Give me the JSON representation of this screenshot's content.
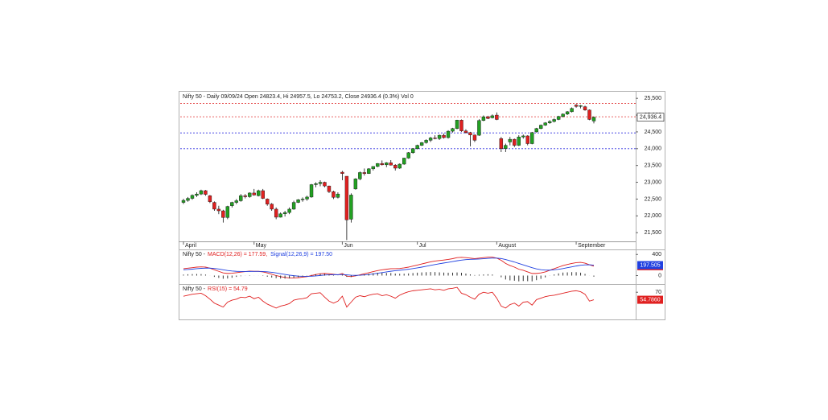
{
  "chart_data": [
    {
      "type": "candlestick",
      "title": "Nifty 50 - Daily 09/09/24 Open 24823.4, Hi 24957.5, Lo 24753.2, Close 24936.4 (0.3%) Vol 0",
      "categories": [
        "April",
        null,
        null,
        null,
        null,
        null,
        null,
        null,
        null,
        null,
        null,
        null,
        null,
        null,
        null,
        null,
        "May",
        null,
        null,
        null,
        null,
        null,
        null,
        null,
        null,
        null,
        null,
        null,
        null,
        null,
        null,
        null,
        null,
        null,
        null,
        null,
        "Jun",
        null,
        null,
        null,
        null,
        null,
        null,
        null,
        null,
        null,
        null,
        null,
        null,
        null,
        null,
        null,
        null,
        "Jul",
        null,
        null,
        null,
        null,
        null,
        null,
        null,
        null,
        null,
        null,
        null,
        null,
        null,
        null,
        null,
        null,
        null,
        "August",
        null,
        null,
        null,
        null,
        null,
        null,
        null,
        null,
        null,
        null,
        null,
        null,
        null,
        null,
        null,
        null,
        null,
        "September",
        null,
        null,
        null,
        null
      ],
      "open": [
        22400,
        22460,
        22520,
        22610,
        22650,
        22750,
        22600,
        22400,
        22200,
        22150,
        21950,
        22300,
        22400,
        22450,
        22600,
        22570,
        22680,
        22600,
        22750,
        22500,
        22350,
        22200,
        21960,
        22060,
        22100,
        22200,
        22400,
        22480,
        22500,
        22560,
        22930,
        22960,
        23000,
        22890,
        22720,
        22550,
        23300,
        23180,
        21900,
        22800,
        23100,
        23290,
        23260,
        23400,
        23470,
        23560,
        23520,
        23580,
        23510,
        23420,
        23540,
        23720,
        23880,
        24000,
        24100,
        24180,
        24250,
        24320,
        24300,
        24400,
        24330,
        24520,
        24600,
        24850,
        24530,
        24480,
        24410,
        24400,
        24840,
        24950,
        24920,
        25000,
        24300,
        24000,
        24200,
        24280,
        24100,
        24350,
        24380,
        24150,
        24500,
        24600,
        24700,
        24770,
        24810,
        24870,
        24960,
        25030,
        25100,
        25300,
        25260,
        25250,
        25150,
        24823.4
      ],
      "high": [
        22510,
        22560,
        22640,
        22700,
        22780,
        22770,
        22620,
        22430,
        22300,
        22180,
        22300,
        22420,
        22500,
        22650,
        22650,
        22700,
        22800,
        22780,
        22800,
        22520,
        22380,
        22250,
        22100,
        22150,
        22250,
        22450,
        22500,
        22550,
        22600,
        22950,
        23000,
        23060,
        23020,
        22900,
        22750,
        22700,
        23340,
        23180,
        22670,
        23120,
        23320,
        23410,
        23420,
        23480,
        23570,
        23650,
        23600,
        23660,
        23540,
        23560,
        23730,
        23900,
        24020,
        24120,
        24200,
        24280,
        24350,
        24400,
        24420,
        24450,
        24550,
        24620,
        24860,
        24870,
        24580,
        24500,
        24420,
        24880,
        24990,
        24980,
        25020,
        25080,
        24350,
        24150,
        24350,
        24300,
        24400,
        24420,
        24400,
        24500,
        24620,
        24720,
        24790,
        24850,
        24900,
        24980,
        25050,
        25120,
        25230,
        25330,
        25300,
        25280,
        25170,
        24957.5
      ],
      "low": [
        22350,
        22420,
        22480,
        22560,
        22620,
        22600,
        22380,
        22150,
        22050,
        21800,
        21900,
        22250,
        22350,
        22420,
        22520,
        22540,
        22600,
        22580,
        22500,
        22300,
        22150,
        21900,
        21950,
        21980,
        22050,
        22180,
        22380,
        22420,
        22450,
        22540,
        22850,
        22880,
        22850,
        22680,
        22500,
        22520,
        23060,
        21280,
        21800,
        22780,
        23060,
        23200,
        23250,
        23350,
        23450,
        23500,
        23450,
        23500,
        23350,
        23400,
        23520,
        23700,
        23850,
        23980,
        24080,
        24150,
        24200,
        24280,
        24260,
        24300,
        24300,
        24480,
        24580,
        24500,
        24450,
        24070,
        24200,
        24380,
        24820,
        24880,
        24900,
        24850,
        23900,
        23900,
        24100,
        24050,
        24080,
        24300,
        24100,
        24130,
        24480,
        24580,
        24680,
        24740,
        24780,
        24850,
        24930,
        25000,
        25080,
        25220,
        25200,
        25130,
        24850,
        24753.2
      ],
      "close": [
        22460,
        22520,
        22610,
        22650,
        22750,
        22640,
        22420,
        22200,
        22150,
        21950,
        22280,
        22400,
        22450,
        22600,
        22570,
        22680,
        22620,
        22750,
        22520,
        22350,
        22200,
        21960,
        22060,
        22100,
        22200,
        22400,
        22480,
        22500,
        22560,
        22930,
        22960,
        23000,
        22890,
        22720,
        22550,
        22650,
        23260,
        21880,
        22620,
        23100,
        23290,
        23260,
        23400,
        23470,
        23560,
        23520,
        23580,
        23510,
        23420,
        23540,
        23720,
        23880,
        24000,
        24100,
        24180,
        24250,
        24320,
        24300,
        24400,
        24330,
        24520,
        24600,
        24850,
        24530,
        24480,
        24410,
        24250,
        24840,
        24950,
        24900,
        24980,
        24870,
        24000,
        24100,
        24280,
        24100,
        24350,
        24380,
        24150,
        24480,
        24600,
        24700,
        24770,
        24810,
        24870,
        24960,
        25030,
        25100,
        25200,
        25260,
        25280,
        25150,
        24870,
        24936.4
      ],
      "up_color": "#22a022",
      "down_color": "#e02020",
      "ylim": [
        21240,
        25720
      ],
      "yticks": [
        {
          "value": 21500,
          "label": "21,500"
        },
        {
          "value": 22000,
          "label": "22,000"
        },
        {
          "value": 22500,
          "label": "22,500"
        },
        {
          "value": 23000,
          "label": "23,000"
        },
        {
          "value": 23500,
          "label": "23,500"
        },
        {
          "value": 24000,
          "label": "24,000"
        },
        {
          "value": 24500,
          "label": "24,500"
        },
        {
          "value": 25000,
          "label": "25,000"
        },
        {
          "value": 25500,
          "label": "25,500"
        }
      ],
      "hlines": [
        {
          "value": 25350,
          "color": "#e03030"
        },
        {
          "value": 24950,
          "color": "#e03030"
        },
        {
          "value": 24470,
          "color": "#3030e0"
        },
        {
          "value": 24000,
          "color": "#3030e0"
        }
      ],
      "price_marker": {
        "value": 24936.4,
        "label": "24,936.4"
      }
    },
    {
      "type": "line",
      "title": "Nifty 50 -",
      "series": [
        {
          "name": "MACD(12,26) = 177.59,",
          "color": "#e02020",
          "marker": 177.593,
          "values": [
            130,
            140,
            150,
            160,
            165,
            160,
            140,
            110,
            80,
            50,
            40,
            45,
            55,
            65,
            75,
            85,
            80,
            80,
            70,
            50,
            25,
            0,
            -20,
            -35,
            -45,
            -45,
            -40,
            -30,
            -20,
            0,
            20,
            35,
            40,
            35,
            25,
            15,
            40,
            -10,
            -20,
            -5,
            15,
            35,
            55,
            75,
            95,
            110,
            120,
            130,
            130,
            135,
            145,
            160,
            180,
            200,
            220,
            240,
            260,
            275,
            285,
            295,
            305,
            320,
            340,
            345,
            340,
            330,
            320,
            330,
            340,
            350,
            350,
            330,
            290,
            230,
            190,
            160,
            120,
            100,
            70,
            40,
            40,
            50,
            70,
            100,
            130,
            160,
            190,
            210,
            230,
            245,
            250,
            235,
            205,
            177.59
          ]
        },
        {
          "name": "Signal(12,26,9) = 197.50",
          "color": "#2040e0",
          "marker": 197.505,
          "values": [
            110,
            115,
            122,
            130,
            137,
            141,
            141,
            135,
            124,
            110,
            96,
            86,
            80,
            77,
            77,
            78,
            79,
            79,
            77,
            72,
            62,
            50,
            36,
            22,
            9,
            -2,
            -10,
            -14,
            -15,
            -12,
            -6,
            2,
            10,
            15,
            17,
            17,
            20,
            14,
            7,
            4,
            6,
            12,
            20,
            31,
            44,
            57,
            70,
            82,
            92,
            101,
            110,
            120,
            132,
            145,
            160,
            176,
            193,
            209,
            224,
            238,
            251,
            265,
            280,
            292,
            302,
            307,
            310,
            314,
            319,
            325,
            330,
            330,
            322,
            304,
            281,
            257,
            229,
            203,
            176,
            149,
            127,
            112,
            104,
            103,
            109,
            119,
            133,
            149,
            165,
            181,
            195,
            203,
            204,
            197.5
          ]
        },
        {
          "type": "bar",
          "color": "#333333",
          "values": [
            20,
            25,
            28,
            30,
            28,
            19,
            -1,
            -25,
            -44,
            -60,
            -56,
            -41,
            -25,
            -12,
            -2,
            7,
            1,
            1,
            -7,
            -22,
            -37,
            -50,
            -56,
            -57,
            -54,
            -43,
            -30,
            -16,
            -5,
            12,
            26,
            33,
            30,
            20,
            8,
            -2,
            20,
            -24,
            -27,
            -9,
            9,
            23,
            35,
            44,
            51,
            53,
            50,
            48,
            38,
            34,
            35,
            40,
            48,
            55,
            60,
            64,
            67,
            66,
            61,
            57,
            54,
            55,
            60,
            53,
            38,
            23,
            10,
            16,
            21,
            25,
            20,
            0,
            -32,
            -74,
            -91,
            -97,
            -109,
            -103,
            -106,
            -109,
            -87,
            -62,
            -34,
            -3,
            21,
            41,
            57,
            61,
            65,
            64,
            55,
            32,
            1,
            -20
          ]
        }
      ],
      "ylim": [
        -160,
        480
      ],
      "yticks": [
        0,
        400
      ]
    },
    {
      "type": "line",
      "title": "Nifty 50 -",
      "series": [
        {
          "name": "RSI(15) = 54.79",
          "color": "#e02020",
          "marker": {
            "value": 54.786,
            "label": "54.7860"
          },
          "values": [
            62,
            64,
            66,
            67,
            68,
            63,
            56,
            48,
            44,
            40,
            50,
            54,
            56,
            60,
            59,
            62,
            57,
            60,
            52,
            46,
            42,
            38,
            42,
            44,
            47,
            54,
            56,
            57,
            59,
            67,
            68,
            69,
            60,
            52,
            48,
            52,
            62,
            40,
            50,
            60,
            63,
            61,
            64,
            66,
            67,
            63,
            65,
            62,
            58,
            64,
            68,
            71,
            73,
            74,
            75,
            76,
            77,
            75,
            76,
            74,
            77,
            78,
            80,
            68,
            65,
            60,
            56,
            66,
            70,
            68,
            70,
            58,
            42,
            38,
            45,
            48,
            42,
            50,
            51,
            44,
            55,
            58,
            61,
            63,
            64,
            66,
            68,
            70,
            72,
            73,
            71,
            66,
            52,
            54.79
          ]
        }
      ],
      "ylim": [
        15,
        85
      ],
      "yticks": [
        70
      ]
    }
  ]
}
